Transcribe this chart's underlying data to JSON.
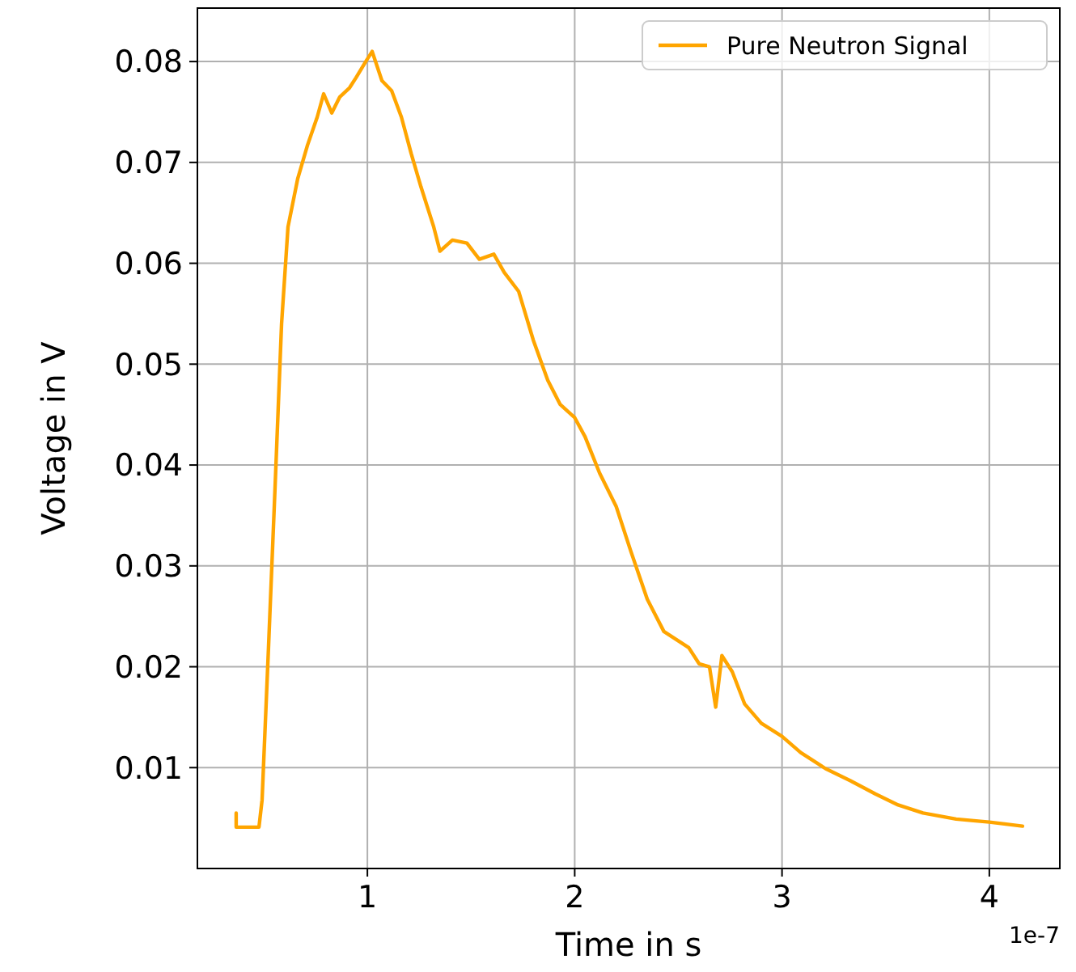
{
  "chart_data": {
    "type": "line",
    "xlabel": "Time in s",
    "ylabel": "Voltage in V",
    "annotations": [
      "1e-7"
    ],
    "xlim": [
      0.18,
      4.34
    ],
    "xticks": [
      1,
      2,
      3,
      4
    ],
    "ylim": [
      0,
      0.0853
    ],
    "yticks": [
      0.01,
      0.02,
      0.03,
      0.04,
      0.05,
      0.06,
      0.07,
      0.08
    ],
    "grid": true,
    "legend": "top right",
    "line_style": "solid",
    "series": [
      {
        "name": "Pure Neutron Signal",
        "color": "#ffa500",
        "x": [
          0.367,
          0.367,
          0.477,
          0.492,
          0.523,
          0.555,
          0.586,
          0.617,
          0.664,
          0.711,
          0.758,
          0.789,
          0.828,
          0.867,
          0.914,
          0.945,
          0.992,
          1.023,
          1.07,
          1.117,
          1.164,
          1.211,
          1.258,
          1.32,
          1.35,
          1.41,
          1.48,
          1.54,
          1.61,
          1.66,
          1.73,
          1.8,
          1.87,
          1.93,
          2.0,
          2.05,
          2.12,
          2.2,
          2.27,
          2.35,
          2.43,
          2.55,
          2.6,
          2.65,
          2.68,
          2.71,
          2.76,
          2.82,
          2.9,
          3.0,
          3.09,
          3.21,
          3.33,
          3.45,
          3.56,
          3.68,
          3.84,
          4.0,
          4.16
        ],
        "values": [
          0.0055,
          0.0041,
          0.0041,
          0.0068,
          0.0219,
          0.038,
          0.054,
          0.0636,
          0.0684,
          0.0717,
          0.0745,
          0.0768,
          0.0749,
          0.0765,
          0.0774,
          0.0784,
          0.08,
          0.081,
          0.0781,
          0.0771,
          0.0745,
          0.0709,
          0.0676,
          0.0636,
          0.0612,
          0.0623,
          0.062,
          0.0604,
          0.0609,
          0.0591,
          0.0572,
          0.0524,
          0.0484,
          0.046,
          0.0447,
          0.0428,
          0.0392,
          0.0359,
          0.0315,
          0.0267,
          0.0235,
          0.0219,
          0.0203,
          0.02,
          0.016,
          0.0211,
          0.0195,
          0.0163,
          0.0144,
          0.0131,
          0.0115,
          0.0099,
          0.0087,
          0.0074,
          0.0063,
          0.0055,
          0.0049,
          0.0046,
          0.0042
        ]
      }
    ]
  }
}
